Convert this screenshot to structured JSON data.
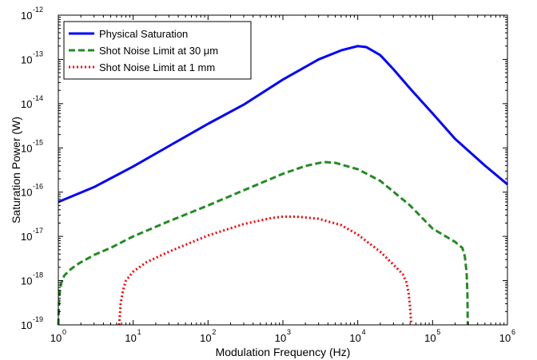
{
  "chart_data": {
    "type": "line",
    "title": "",
    "xlabel": "Modulation Frequency (Hz)",
    "ylabel": "Saturation Power (W)",
    "xscale": "log",
    "yscale": "log",
    "xlim": [
      1,
      1000000
    ],
    "ylim": [
      1e-19,
      1e-12
    ],
    "grid": false,
    "legend_position": "top-left",
    "x_ticks": [
      {
        "base": "10",
        "exp": "0",
        "value": 1
      },
      {
        "base": "10",
        "exp": "1",
        "value": 10
      },
      {
        "base": "10",
        "exp": "2",
        "value": 100
      },
      {
        "base": "10",
        "exp": "3",
        "value": 1000
      },
      {
        "base": "10",
        "exp": "4",
        "value": 10000
      },
      {
        "base": "10",
        "exp": "5",
        "value": 100000
      },
      {
        "base": "10",
        "exp": "6",
        "value": 1000000
      }
    ],
    "y_ticks": [
      {
        "base": "10",
        "exp": "-19",
        "value": 1e-19
      },
      {
        "base": "10",
        "exp": "-18",
        "value": 1e-18
      },
      {
        "base": "10",
        "exp": "-17",
        "value": 1e-17
      },
      {
        "base": "10",
        "exp": "-16",
        "value": 1e-16
      },
      {
        "base": "10",
        "exp": "-15",
        "value": 1e-15
      },
      {
        "base": "10",
        "exp": "-14",
        "value": 1e-14
      },
      {
        "base": "10",
        "exp": "-13",
        "value": 1e-13
      },
      {
        "base": "10",
        "exp": "-12",
        "value": 1e-12
      }
    ],
    "series": [
      {
        "name": "Physical Saturation",
        "color": "#0000ff",
        "dash": "solid",
        "x": [
          1,
          3,
          10,
          30,
          100,
          300,
          1000,
          3000,
          6000,
          10000,
          13000,
          20000,
          30000,
          50000,
          100000,
          200000,
          500000,
          1000000
        ],
        "y": [
          6e-17,
          1.3e-16,
          3.8e-16,
          1.1e-15,
          3.5e-15,
          9.5e-15,
          3.5e-14,
          1e-13,
          1.6e-13,
          2e-13,
          1.9e-13,
          1.25e-13,
          6e-14,
          2.2e-14,
          6e-15,
          1.6e-15,
          4e-16,
          1.5e-16
        ]
      },
      {
        "name": "Shot Noise Limit at 30 μm",
        "color": "#228b22",
        "dash": "dashed",
        "x": [
          1.0,
          1.02,
          1.05,
          1.1,
          1.2,
          1.4,
          1.7,
          2,
          3,
          5,
          10,
          30,
          100,
          300,
          1000,
          2000,
          3500,
          5000,
          10000,
          20000,
          50000,
          100000,
          200000,
          250000,
          270000,
          285000,
          292000,
          295000
        ],
        "y": [
          1e-19,
          3e-19,
          6e-19,
          9e-19,
          1.3e-18,
          1.7e-18,
          2.2e-18,
          2.6e-18,
          3.8e-18,
          5.5e-18,
          1e-17,
          2.2e-17,
          5e-17,
          1.1e-16,
          2.6e-16,
          3.9e-16,
          4.8e-16,
          4.6e-16,
          3.3e-16,
          1.8e-16,
          5e-17,
          1.5e-17,
          7.5e-18,
          5.5e-18,
          3.5e-18,
          1.5e-18,
          5e-19,
          1e-19
        ]
      },
      {
        "name": "Shot Noise Limit at 1 mm",
        "color": "#ff0000",
        "dash": "dotted",
        "x": [
          6.5,
          6.8,
          7.3,
          8,
          10,
          15,
          30,
          100,
          300,
          700,
          1000,
          1500,
          3000,
          6000,
          10000,
          20000,
          30000,
          40000,
          45000,
          48000,
          50000,
          52000
        ],
        "y": [
          1e-19,
          3e-19,
          6e-19,
          1e-18,
          1.6e-18,
          2.6e-18,
          4.5e-18,
          1.05e-17,
          1.9e-17,
          2.6e-17,
          2.8e-17,
          2.8e-17,
          2.5e-17,
          1.8e-17,
          1.1e-17,
          4.5e-18,
          2.3e-18,
          1.4e-18,
          9e-19,
          5e-19,
          2.5e-19,
          1e-19
        ]
      }
    ]
  }
}
